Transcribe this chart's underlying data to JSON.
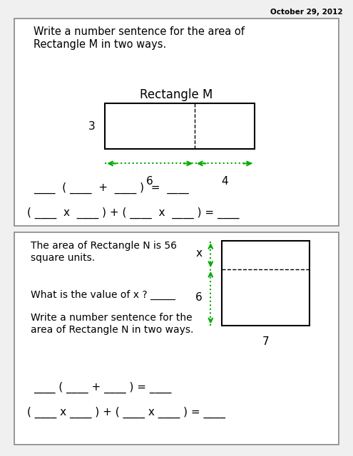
{
  "date_text": "October 29, 2012",
  "panel1": {
    "title": "Write a number sentence for the area of\nRectangle M in two ways.",
    "rect_label": "Rectangle M",
    "height_label": "3",
    "left_width_label": "6",
    "right_width_label": "4",
    "formula1": "____  ( ____  +  ____ )  =  ____",
    "formula2": "( ____  x  ____ ) + ( ____  x  ____ ) = ____"
  },
  "panel2": {
    "text1": "The area of Rectangle N is 56\nsquare units.",
    "text2": "What is the value of x ? _____",
    "text3": "Write a number sentence for the\narea of Rectangle N in two ways.",
    "x_label": "x",
    "six_label": "6",
    "bottom_label": "7",
    "formula1": "____ ( ____ + ____ ) = ____",
    "formula2": "( ____ x ____ ) + ( ____ x ____ ) = ____"
  },
  "green_color": "#00aa00",
  "bg_color": "#f0f0f0",
  "panel_bg": "#ffffff",
  "border_color": "#888888",
  "text_color": "#000000"
}
